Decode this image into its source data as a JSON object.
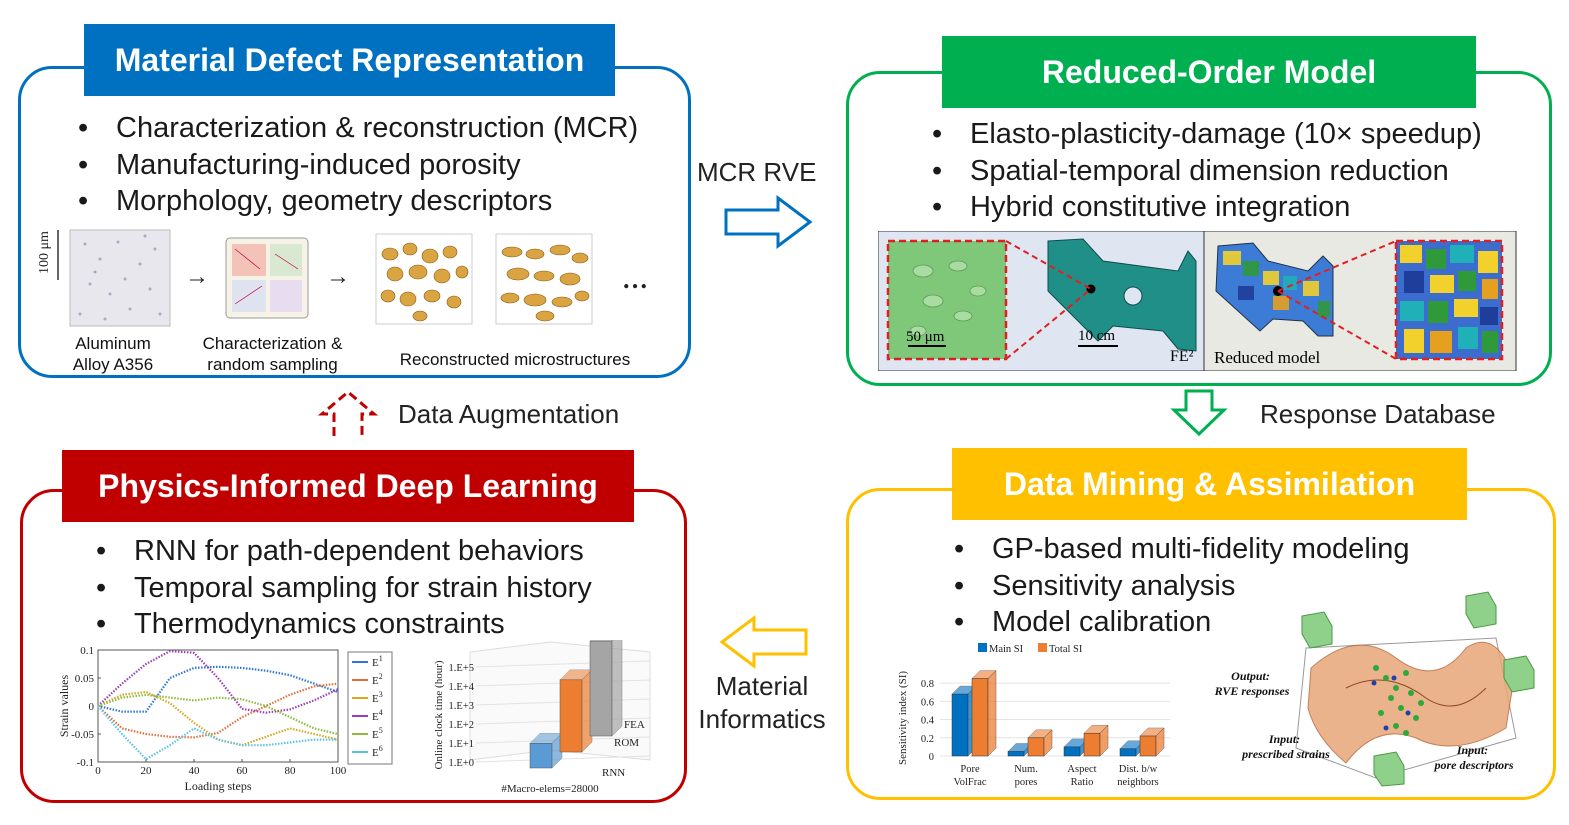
{
  "panels": {
    "mdr": {
      "title": "Material Defect Representation",
      "bullets": [
        "Characterization & reconstruction (MCR)",
        "Manufacturing-induced porosity",
        "Morphology, geometry descriptors"
      ],
      "scale": "100 μm",
      "cap_alloy": "Aluminum\nAlloy A356",
      "cap_sampling": "Characterization &\nrandom sampling",
      "cap_recon": "Reconstructed microstructures",
      "ellipsis": "…",
      "arrow_glyph": "→"
    },
    "rom": {
      "title": "Reduced-Order Model",
      "bullets": [
        "Elasto-plasticity-damage (10× speedup)",
        "Spatial-temporal dimension reduction",
        "Hybrid constitutive integration"
      ],
      "scale_left": "50 μm",
      "scale_mid": "10 cm",
      "fe2": "FE²",
      "reduced": "Reduced model"
    },
    "pidl": {
      "title": "Physics-Informed Deep Learning",
      "bullets": [
        "RNN for path-dependent behaviors",
        "Temporal sampling for strain history",
        "Thermodynamics constraints"
      ]
    },
    "dma": {
      "title": "Data Mining & Assimilation",
      "bullets": [
        "GP-based multi-fidelity modeling",
        "Sensitivity analysis",
        "Model calibration"
      ],
      "surf_output": "Output:\nRVE responses",
      "surf_input1": "Input:\nprescribed strains",
      "surf_input2": "Input:\npore descriptors"
    }
  },
  "flows": {
    "mcr_rve": "MCR RVE",
    "response_db": "Response Database",
    "material_informatics": "Material\nInformatics",
    "data_augmentation": "Data Augmentation"
  },
  "colors": {
    "blue": "#0070C0",
    "green": "#00B050",
    "red": "#C00000",
    "yellow": "#FFC000"
  },
  "chart_data": [
    {
      "type": "line",
      "xlabel": "Loading steps",
      "ylabel": "Strain values",
      "xlim": [
        0,
        100
      ],
      "ylim": [
        -0.1,
        0.1
      ],
      "xticks": [
        "0",
        "20",
        "40",
        "60",
        "80",
        "100"
      ],
      "yticks": [
        "0.1",
        "0.05",
        "0",
        "-0.05",
        "-0.1"
      ],
      "legend_position": "right",
      "x": [
        0,
        10,
        20,
        30,
        40,
        50,
        60,
        70,
        80,
        90,
        100
      ],
      "series": [
        {
          "name": "E1",
          "color": "#2E75D6",
          "values": [
            0,
            -0.01,
            -0.01,
            0.05,
            0.068,
            0.07,
            0.068,
            0.063,
            0.055,
            0.04,
            0.025
          ]
        },
        {
          "name": "E2",
          "color": "#E0703A",
          "values": [
            0,
            -0.04,
            -0.05,
            -0.055,
            -0.056,
            -0.048,
            -0.02,
            0.0,
            0.02,
            0.035,
            0.04
          ]
        },
        {
          "name": "E3",
          "color": "#D9A621",
          "values": [
            0,
            0.02,
            0.025,
            0.005,
            -0.03,
            -0.06,
            -0.07,
            -0.055,
            -0.04,
            -0.05,
            -0.06
          ]
        },
        {
          "name": "E4",
          "color": "#9B3FB5",
          "values": [
            0,
            0.04,
            0.075,
            0.098,
            0.095,
            0.05,
            -0.005,
            -0.012,
            -0.006,
            0.01,
            0.03
          ]
        },
        {
          "name": "E5",
          "color": "#8DBB3C",
          "values": [
            0,
            0.015,
            0.02,
            0.015,
            0.01,
            0.015,
            0.012,
            0.0,
            -0.02,
            -0.04,
            -0.05
          ]
        },
        {
          "name": "E6",
          "color": "#5BC2E7",
          "values": [
            0,
            -0.05,
            -0.095,
            -0.07,
            -0.04,
            -0.06,
            -0.07,
            -0.07,
            -0.065,
            -0.06,
            -0.06
          ]
        }
      ]
    },
    {
      "type": "bar",
      "xlabel": "#Macro-elems=28000",
      "ylabel": "Online clock time (hour)",
      "yticks": [
        "1.E+0",
        "1.E+1",
        "1.E+2",
        "1.E+3",
        "1.E+4",
        "1.E+5"
      ],
      "categories": [
        "RNN",
        "ROM",
        "FEA"
      ],
      "colors": [
        "#5B9BD5",
        "#ED7D31",
        "#A5A5A5"
      ],
      "values": [
        1.3,
        3.8,
        5.0
      ]
    },
    {
      "type": "bar",
      "ylabel": "Sensitivity index (SI)",
      "ylim": [
        0,
        0.9
      ],
      "yticks": [
        "0",
        "0.2",
        "0.4",
        "0.6",
        "0.8"
      ],
      "categories": [
        "Pore\nVolFrac",
        "Num.\npores",
        "Aspect\nRatio",
        "Dist. b/w\nneighbors"
      ],
      "legend_position": "top",
      "series": [
        {
          "name": "Main SI",
          "color": "#0070C0",
          "values": [
            0.68,
            0.05,
            0.1,
            0.08
          ]
        },
        {
          "name": "Total SI",
          "color": "#ED7D31",
          "values": [
            0.85,
            0.2,
            0.25,
            0.22
          ]
        }
      ]
    }
  ]
}
